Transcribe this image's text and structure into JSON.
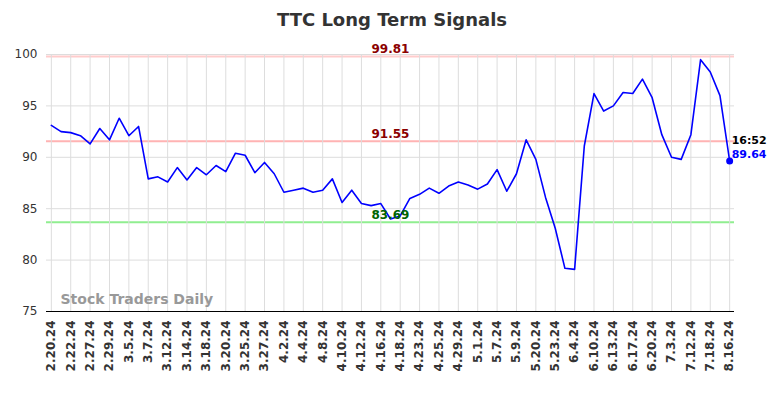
{
  "chart_data": {
    "type": "line",
    "title": "TTC Long Term Signals",
    "watermark": "Stock Traders Daily",
    "categories": [
      "2.20.24",
      null,
      "2.22.24",
      null,
      "2.27.24",
      null,
      "2.29.24",
      null,
      "3.5.24",
      null,
      "3.7.24",
      null,
      "3.12.24",
      null,
      "3.14.24",
      null,
      "3.18.24",
      null,
      "3.20.24",
      null,
      "3.25.24",
      null,
      "3.27.24",
      null,
      "4.2.24",
      null,
      "4.4.24",
      null,
      "4.8.24",
      null,
      "4.10.24",
      null,
      "4.12.24",
      null,
      "4.16.24",
      null,
      "4.18.24",
      null,
      "4.23.24",
      null,
      "4.25.24",
      null,
      "4.29.24",
      null,
      "5.1.24",
      null,
      "5.7.24",
      null,
      "5.9.24",
      null,
      "5.20.24",
      null,
      "5.23.24",
      null,
      "6.4.24",
      null,
      "6.10.24",
      null,
      "6.13.24",
      null,
      "6.17.24",
      null,
      "6.20.24",
      null,
      "7.3.24",
      null,
      "7.12.24",
      null,
      "7.18.24",
      null,
      "8.16.24"
    ],
    "values": [
      93.1,
      92.5,
      92.4,
      92.1,
      91.3,
      92.8,
      91.7,
      93.8,
      92.1,
      93.0,
      87.9,
      88.1,
      87.6,
      89.0,
      87.8,
      89.0,
      88.3,
      89.2,
      88.6,
      90.4,
      90.2,
      88.5,
      89.5,
      88.4,
      86.6,
      86.8,
      87.0,
      86.6,
      86.8,
      87.9,
      85.6,
      86.8,
      85.5,
      85.3,
      85.5,
      84.0,
      84.3,
      86.0,
      86.4,
      87.0,
      86.5,
      87.2,
      87.6,
      87.3,
      86.9,
      87.4,
      88.8,
      86.7,
      88.4,
      91.7,
      89.8,
      86.1,
      83.1,
      79.2,
      79.1,
      91.1,
      96.2,
      94.5,
      95.0,
      96.3,
      96.2,
      97.6,
      95.8,
      92.2,
      90.0,
      89.8,
      92.2,
      99.5,
      98.3,
      96.0,
      89.64
    ],
    "color": "#0000ff",
    "ylim": [
      75,
      100
    ],
    "yticks": [
      75,
      80,
      85,
      90,
      95,
      100
    ],
    "grid": true,
    "lines": [
      {
        "value": 99.81,
        "label": "99.81",
        "color": "#ffcccc",
        "label_color": "#8b0000"
      },
      {
        "value": 91.55,
        "label": "91.55",
        "color": "#ffb3b3",
        "label_color": "#8b0000"
      },
      {
        "value": 83.69,
        "label": "83.69",
        "color": "#90ee90",
        "label_color": "#006400"
      }
    ],
    "last_point": {
      "time": "16:52",
      "label": "89.64",
      "value": 89.64
    }
  }
}
